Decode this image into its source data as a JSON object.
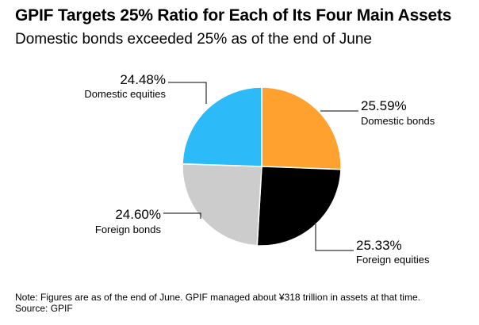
{
  "title": "GPIF Targets 25% Ratio for Each of Its Four Main Assets",
  "subtitle": "Domestic bonds exceeded 25% as of the end of June",
  "note": "Note: Figures are as of the end of June. GPIF managed about ¥318 trillion in assets at that time.",
  "source": "Source: GPIF",
  "chart_data": {
    "type": "pie",
    "start": "12 o'clock, clockwise",
    "slices": [
      {
        "label": "Domestic bonds",
        "value": 25.59,
        "value_label": "25.59%",
        "color": "#ffa12e"
      },
      {
        "label": "Foreign equities",
        "value": 25.33,
        "value_label": "25.33%",
        "color": "#000000"
      },
      {
        "label": "Foreign bonds",
        "value": 24.6,
        "value_label": "24.60%",
        "color": "#cccccc"
      },
      {
        "label": "Domestic equities",
        "value": 24.48,
        "value_label": "24.48%",
        "color": "#2cbaf8"
      }
    ]
  }
}
